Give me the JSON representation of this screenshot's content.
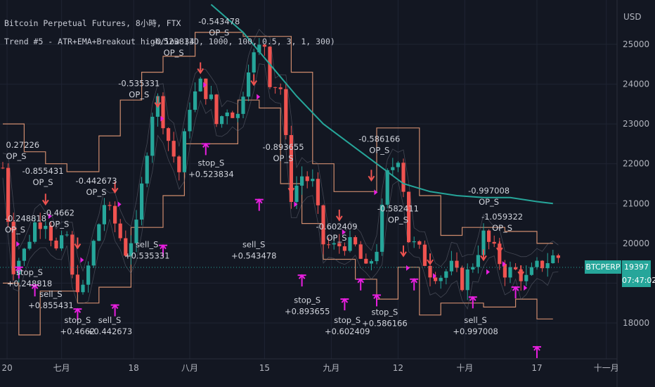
{
  "header": {
    "symbol_line": "Bitcoin Perpetual Futures, 8小時, FTX",
    "strategy_line": "Trend #5 - ATR+EMA+Breakout high/low (3D, 1000, 100, 0.5, 3, 1, 300)"
  },
  "price_scale": {
    "unit": "USD",
    "ticks": [
      "25000",
      "24000",
      "23000",
      "22000",
      "21000",
      "20000",
      "19000",
      "18000"
    ]
  },
  "last_price": {
    "ticker": "BTCPERP",
    "price": "19397",
    "countdown": "07:47:02",
    "color": "#26a69a"
  },
  "colors": {
    "background": "#131722",
    "up": "#26a69a",
    "down": "#ef5350",
    "ema": "#26a69a",
    "channel": "#f0a07a",
    "signal_marker": "#e91fe0",
    "text": "#d1d4dc"
  },
  "chart_data": {
    "type": "candlestick",
    "title": "Bitcoin Perpetual Futures, 8小時, FTX",
    "y_unit": "USD",
    "ylim": [
      17300,
      26000
    ],
    "x_ticks": [
      "20",
      "七月",
      "18",
      "八月",
      "15",
      "九月",
      "12",
      "十月",
      "17",
      "十一月"
    ],
    "x_tick_positions": [
      0.8,
      11,
      24.5,
      35,
      49,
      61.5,
      74,
      86.5,
      100,
      113
    ],
    "n_bars": 105,
    "close_path": [
      [
        0,
        21900
      ],
      [
        2,
        19400
      ],
      [
        4,
        19800
      ],
      [
        6,
        20500
      ],
      [
        8,
        20600
      ],
      [
        10,
        19800
      ],
      [
        12,
        20200
      ],
      [
        13,
        19100
      ],
      [
        15,
        18800
      ],
      [
        17,
        20000
      ],
      [
        19,
        21000
      ],
      [
        21,
        20500
      ],
      [
        23,
        19800
      ],
      [
        25,
        20400
      ],
      [
        27,
        22400
      ],
      [
        28,
        23300
      ],
      [
        29,
        23600
      ],
      [
        31,
        22600
      ],
      [
        33,
        21800
      ],
      [
        35,
        23500
      ],
      [
        37,
        24000
      ],
      [
        39,
        23600
      ],
      [
        40,
        23000
      ],
      [
        42,
        23400
      ],
      [
        44,
        23200
      ],
      [
        46,
        24500
      ],
      [
        48,
        24900
      ],
      [
        49,
        25000
      ],
      [
        50,
        24100
      ],
      [
        52,
        23900
      ],
      [
        54,
        21200
      ],
      [
        56,
        21700
      ],
      [
        58,
        21500
      ],
      [
        60,
        20000
      ],
      [
        62,
        19900
      ],
      [
        64,
        20000
      ],
      [
        66,
        19900
      ],
      [
        68,
        19300
      ],
      [
        70,
        19900
      ],
      [
        72,
        21700
      ],
      [
        74,
        22200
      ],
      [
        75,
        21400
      ],
      [
        76,
        20100
      ],
      [
        78,
        19800
      ],
      [
        80,
        19300
      ],
      [
        82,
        19200
      ],
      [
        84,
        19400
      ],
      [
        86,
        19000
      ],
      [
        88,
        19500
      ],
      [
        90,
        20200
      ],
      [
        92,
        19800
      ],
      [
        94,
        19300
      ],
      [
        96,
        19300
      ],
      [
        98,
        19100
      ],
      [
        100,
        19400
      ],
      [
        103,
        19650
      ]
    ],
    "series": [
      {
        "name": "EMA",
        "points": [
          [
            39,
            26000
          ],
          [
            45,
            25300
          ],
          [
            50,
            24500
          ],
          [
            55,
            23700
          ],
          [
            60,
            23000
          ],
          [
            65,
            22500
          ],
          [
            70,
            22000
          ],
          [
            75,
            21500
          ],
          [
            80,
            21300
          ],
          [
            85,
            21200
          ],
          [
            90,
            21150
          ],
          [
            95,
            21150
          ],
          [
            100,
            21050
          ],
          [
            103,
            21000
          ]
        ]
      },
      {
        "name": "Breakout high",
        "points": [
          [
            0,
            23000
          ],
          [
            4,
            23000
          ],
          [
            4,
            22300
          ],
          [
            8,
            22300
          ],
          [
            8,
            22000
          ],
          [
            12,
            22000
          ],
          [
            12,
            21800
          ],
          [
            18,
            21800
          ],
          [
            18,
            22700
          ],
          [
            22,
            22700
          ],
          [
            22,
            23600
          ],
          [
            26,
            23600
          ],
          [
            26,
            24300
          ],
          [
            30,
            24300
          ],
          [
            30,
            24700
          ],
          [
            36,
            24700
          ],
          [
            36,
            25300
          ],
          [
            45,
            25300
          ],
          [
            45,
            25200
          ],
          [
            54,
            25200
          ],
          [
            54,
            24300
          ],
          [
            58,
            24300
          ],
          [
            58,
            22000
          ],
          [
            62,
            22000
          ],
          [
            62,
            21300
          ],
          [
            70,
            21300
          ],
          [
            70,
            22900
          ],
          [
            78,
            22900
          ],
          [
            78,
            21200
          ],
          [
            82,
            21200
          ],
          [
            82,
            20200
          ],
          [
            86,
            20200
          ],
          [
            86,
            20400
          ],
          [
            94,
            20400
          ],
          [
            94,
            20300
          ],
          [
            100,
            20300
          ],
          [
            100,
            20000
          ],
          [
            103,
            20000
          ]
        ]
      },
      {
        "name": "Breakout low",
        "points": [
          [
            0,
            19000
          ],
          [
            3,
            19000
          ],
          [
            3,
            17700
          ],
          [
            7,
            17700
          ],
          [
            7,
            18800
          ],
          [
            14,
            18800
          ],
          [
            14,
            18500
          ],
          [
            18,
            18500
          ],
          [
            18,
            18900
          ],
          [
            24,
            18900
          ],
          [
            24,
            20400
          ],
          [
            30,
            20400
          ],
          [
            30,
            21200
          ],
          [
            34,
            21200
          ],
          [
            34,
            22500
          ],
          [
            44,
            22500
          ],
          [
            44,
            23600
          ],
          [
            48,
            23600
          ],
          [
            48,
            23400
          ],
          [
            52,
            23400
          ],
          [
            52,
            21500
          ],
          [
            56,
            21500
          ],
          [
            56,
            20500
          ],
          [
            60,
            20500
          ],
          [
            60,
            19600
          ],
          [
            66,
            19600
          ],
          [
            66,
            19100
          ],
          [
            70,
            19100
          ],
          [
            70,
            18600
          ],
          [
            74,
            18600
          ],
          [
            74,
            19400
          ],
          [
            78,
            19400
          ],
          [
            78,
            18200
          ],
          [
            82,
            18200
          ],
          [
            82,
            18500
          ],
          [
            90,
            18500
          ],
          [
            90,
            18400
          ],
          [
            96,
            18400
          ],
          [
            96,
            18600
          ],
          [
            100,
            18600
          ],
          [
            100,
            18100
          ],
          [
            103,
            18100
          ]
        ]
      }
    ],
    "trade_labels": [
      {
        "x": 0.6,
        "price": 22400,
        "lines": [
          "0.27226",
          "OP_S"
        ],
        "anchor": "start",
        "clip": true
      },
      {
        "x": 0.4,
        "price": 20550,
        "lines": [
          "-0.248818",
          "OP_S"
        ],
        "anchor": "start"
      },
      {
        "x": 7.5,
        "price": 21750,
        "lines": [
          "-0.855431",
          "OP_S"
        ],
        "anchor": "middle"
      },
      {
        "x": 10.5,
        "price": 20700,
        "lines": [
          "-0.4662",
          "OP_S"
        ],
        "anchor": "middle"
      },
      {
        "x": 17.5,
        "price": 21500,
        "lines": [
          "-0.442673",
          "OP_S"
        ],
        "anchor": "middle"
      },
      {
        "x": 25.5,
        "price": 23950,
        "lines": [
          "-0.535331",
          "OP_S"
        ],
        "anchor": "middle"
      },
      {
        "x": 32,
        "price": 25000,
        "lines": [
          "-0.523834",
          "OP_S"
        ],
        "anchor": "middle"
      },
      {
        "x": 40.5,
        "price": 25500,
        "lines": [
          "-0.543478",
          "OP_S"
        ],
        "anchor": "middle"
      },
      {
        "x": 52.5,
        "price": 22350,
        "lines": [
          "-0.893655",
          "OP_S"
        ],
        "anchor": "middle"
      },
      {
        "x": 62.5,
        "price": 20350,
        "lines": [
          "-0.602409",
          "OP_S"
        ],
        "anchor": "middle"
      },
      {
        "x": 70.5,
        "price": 22550,
        "lines": [
          "-0.586166",
          "OP_S"
        ],
        "anchor": "middle"
      },
      {
        "x": 74,
        "price": 20800,
        "lines": [
          "-0.582411",
          "OP_S"
        ],
        "anchor": "middle"
      },
      {
        "x": 91,
        "price": 21250,
        "lines": [
          "-0.997008",
          "OP_S"
        ],
        "anchor": "middle"
      },
      {
        "x": 93.5,
        "price": 20600,
        "lines": [
          "-1.059322",
          "OP_S"
        ],
        "anchor": "middle"
      },
      {
        "x": 5,
        "price": 19200,
        "lines": [
          "stop_S",
          "+0.248818"
        ],
        "anchor": "middle"
      },
      {
        "x": 9,
        "price": 18650,
        "lines": [
          "sell_S",
          "+0.855431"
        ],
        "anchor": "middle"
      },
      {
        "x": 14,
        "price": 18000,
        "lines": [
          "stop_S",
          "+0.4662"
        ],
        "anchor": "middle"
      },
      {
        "x": 20,
        "price": 18000,
        "lines": [
          "sell_S",
          "+0.442673"
        ],
        "anchor": "middle"
      },
      {
        "x": 27,
        "price": 19900,
        "lines": [
          "sell_S",
          "+0.535331"
        ],
        "anchor": "middle"
      },
      {
        "x": 39,
        "price": 21950,
        "lines": [
          "stop_S",
          "+0.523834"
        ],
        "anchor": "middle"
      },
      {
        "x": 47,
        "price": 19900,
        "lines": [
          "sell_S",
          "+0.543478"
        ],
        "anchor": "middle"
      },
      {
        "x": 57,
        "price": 18500,
        "lines": [
          "stop_S",
          "+0.893655"
        ],
        "anchor": "middle"
      },
      {
        "x": 64.5,
        "price": 18000,
        "lines": [
          "stop_S",
          "+0.602409"
        ],
        "anchor": "middle"
      },
      {
        "x": 71.5,
        "price": 18200,
        "lines": [
          "stop_S",
          "+0.586166"
        ],
        "anchor": "middle"
      },
      {
        "x": 88.5,
        "price": 18000,
        "lines": [
          "sell_S",
          "+0.997008"
        ],
        "anchor": "middle"
      }
    ],
    "open_signals": [
      [
        2,
        20300
      ],
      [
        8,
        21000
      ],
      [
        14,
        19900
      ],
      [
        21,
        21300
      ],
      [
        29,
        23450
      ],
      [
        37,
        24300
      ],
      [
        47,
        24000
      ],
      [
        54,
        21300
      ],
      [
        63,
        20600
      ],
      [
        69,
        21600
      ],
      [
        75,
        19700
      ],
      [
        80,
        19500
      ],
      [
        90,
        19600
      ],
      [
        93,
        19800
      ],
      [
        97,
        19200
      ]
    ],
    "close_signals": [
      [
        3,
        19400
      ],
      [
        6,
        18950
      ],
      [
        14,
        18350
      ],
      [
        21,
        18450
      ],
      [
        30,
        19950
      ],
      [
        38,
        22500
      ],
      [
        48,
        21100
      ],
      [
        56,
        19200
      ],
      [
        64,
        18600
      ],
      [
        67,
        19100
      ],
      [
        70,
        18700
      ],
      [
        77,
        19100
      ],
      [
        88,
        18650
      ],
      [
        96,
        18900
      ],
      [
        100,
        17400
      ]
    ]
  }
}
